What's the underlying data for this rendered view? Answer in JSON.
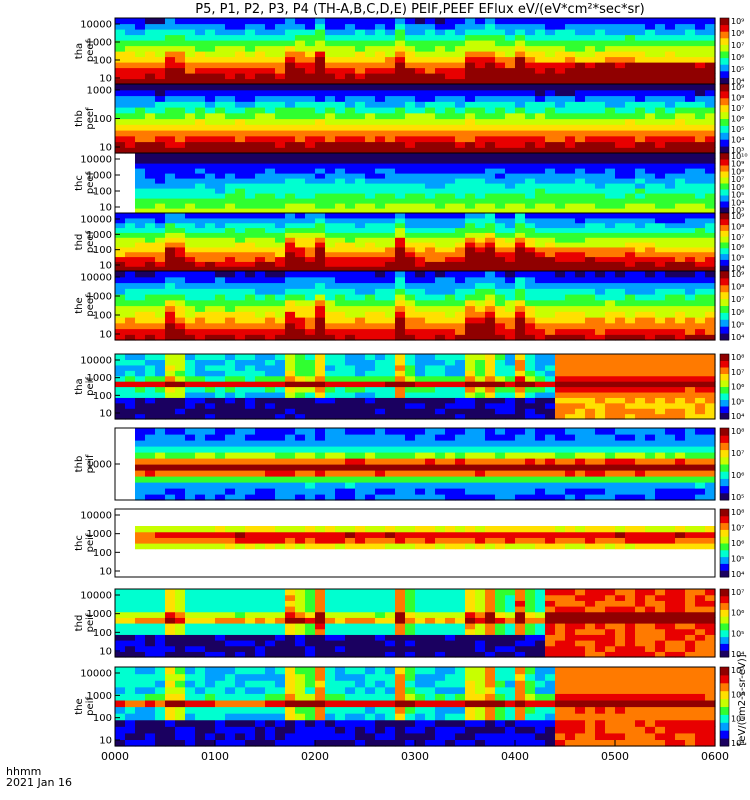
{
  "title": "P5, P1, P2, P3, P4 (TH-A,B,C,D,E) PEIF,PEEF EFlux eV/(eV*cm²*sec*sr)",
  "xaxis": {
    "label_line1": "hhmm",
    "label_line2": "2021 Jan 16",
    "ticks": [
      "0000",
      "0100",
      "0200",
      "0300",
      "0400",
      "0500",
      "0600"
    ]
  },
  "colorbar_label": "[eV/(cm2-s-sr-eV)]",
  "chart_data": {
    "type": "heatmap",
    "panel_count": 10,
    "x_range": [
      "0000",
      "0600"
    ],
    "x_unit": "hhmm",
    "date": "2021 Jan 16",
    "panels": [
      {
        "probe": "tha",
        "product": "peef",
        "label_l1": "tha",
        "label_l2": "peef",
        "yticks": [
          "10",
          "100",
          "1000",
          "10000"
        ],
        "cbar_ticks": [
          "10⁴",
          "10⁵",
          "10⁶",
          "10⁷",
          "10⁸",
          "10⁹"
        ]
      },
      {
        "probe": "thb",
        "product": "peef",
        "label_l1": "thb",
        "label_l2": "peef",
        "yticks": [
          "10",
          "100",
          "1000"
        ],
        "cbar_ticks": [
          "10³",
          "10⁴",
          "10⁵",
          "10⁶",
          "10⁷",
          "10⁸",
          "10⁹"
        ]
      },
      {
        "probe": "thc",
        "product": "peef",
        "label_l1": "thc",
        "label_l2": "peef",
        "yticks": [
          "10",
          "100",
          "1000",
          "10000"
        ],
        "cbar_ticks": [
          "10³",
          "10⁴",
          "10⁵",
          "10⁶",
          "10⁷",
          "10⁸",
          "10⁹",
          "10¹⁰"
        ]
      },
      {
        "probe": "thd",
        "product": "peef",
        "label_l1": "thd",
        "label_l2": "peef",
        "yticks": [
          "10",
          "100",
          "1000",
          "10000"
        ],
        "cbar_ticks": [
          "10⁴",
          "10⁵",
          "10⁶",
          "10⁷",
          "10⁸",
          "10⁹"
        ]
      },
      {
        "probe": "the",
        "product": "peef",
        "label_l1": "the",
        "label_l2": "peef",
        "yticks": [
          "10",
          "100",
          "1000",
          "10000"
        ],
        "cbar_ticks": [
          "10⁴",
          "10⁵",
          "10⁶",
          "10⁷",
          "10⁸",
          "10⁹"
        ]
      },
      {
        "probe": "tha",
        "product": "peif",
        "label_l1": "tha",
        "label_l2": "peif",
        "yticks": [
          "10",
          "100",
          "1000",
          "10000"
        ],
        "cbar_ticks": [
          "10⁴",
          "10⁵",
          "10⁶",
          "10⁷",
          "10⁸"
        ]
      },
      {
        "probe": "thb",
        "product": "peif",
        "label_l1": "thb",
        "label_l2": "peif",
        "yticks": [
          "1000"
        ],
        "cbar_ticks": [
          "10⁵",
          "10⁶",
          "10⁷",
          "10⁸"
        ]
      },
      {
        "probe": "thc",
        "product": "peif",
        "label_l1": "thc",
        "label_l2": "peif",
        "yticks": [
          "10",
          "100",
          "1000",
          "10000"
        ],
        "cbar_ticks": [
          "10⁴",
          "10⁵",
          "10⁶",
          "10⁷",
          "10⁸"
        ]
      },
      {
        "probe": "thd",
        "product": "peif",
        "label_l1": "thd",
        "label_l2": "peif",
        "yticks": [
          "10",
          "100",
          "1000",
          "10000"
        ],
        "cbar_ticks": [
          "10⁴",
          "10⁵",
          "10⁶",
          "10⁷"
        ]
      },
      {
        "probe": "the",
        "product": "peif",
        "label_l1": "the",
        "label_l2": "peif",
        "yticks": [
          "10",
          "100",
          "1000",
          "10000"
        ],
        "cbar_ticks": [
          "10⁴",
          "10⁵",
          "10⁶",
          "10⁷"
        ]
      }
    ],
    "colormap": [
      "#1a0060",
      "#0000ff",
      "#00a0ff",
      "#00ffd0",
      "#30ff30",
      "#c8ff00",
      "#ffe000",
      "#ff7a00",
      "#e80000",
      "#900000"
    ]
  }
}
